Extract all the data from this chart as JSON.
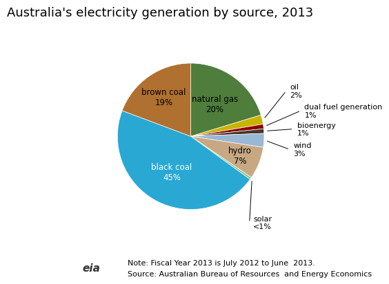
{
  "title": "Australia's electricity generation by source, 2013",
  "slices": [
    {
      "label": "natural gas\n20%",
      "value": 20,
      "color": "#4e7d3c",
      "label_outside": false
    },
    {
      "label": "oil\n2%",
      "value": 2,
      "color": "#c8b400",
      "label_outside": true
    },
    {
      "label": "dual fuel generation\n1%",
      "value": 1,
      "color": "#8b0000",
      "label_outside": true
    },
    {
      "label": "bioenergy\n1%",
      "value": 1,
      "color": "#4a3728",
      "label_outside": true
    },
    {
      "label": "wind\n3%",
      "value": 3,
      "color": "#9ab7d3",
      "label_outside": true
    },
    {
      "label": "hydro\n7%",
      "value": 7,
      "color": "#c8a882",
      "label_outside": false
    },
    {
      "label": "solar\n<1%",
      "value": 0.5,
      "color": "#8bc88b",
      "label_outside": true
    },
    {
      "label": "black coal\n45%",
      "value": 45,
      "color": "#29a8d4",
      "label_outside": false
    },
    {
      "label": "brown coal\n19%",
      "value": 19,
      "color": "#b07030",
      "label_outside": false
    }
  ],
  "note_line1": "Note: Fiscal Year 2013 is July 2012 to June  2013.",
  "note_line2": "Source: Australian Bureau of Resources  and Energy Economics",
  "bg_color": "#ffffff",
  "title_fontsize": 13,
  "label_fontsize": 8.5,
  "note_fontsize": 8
}
